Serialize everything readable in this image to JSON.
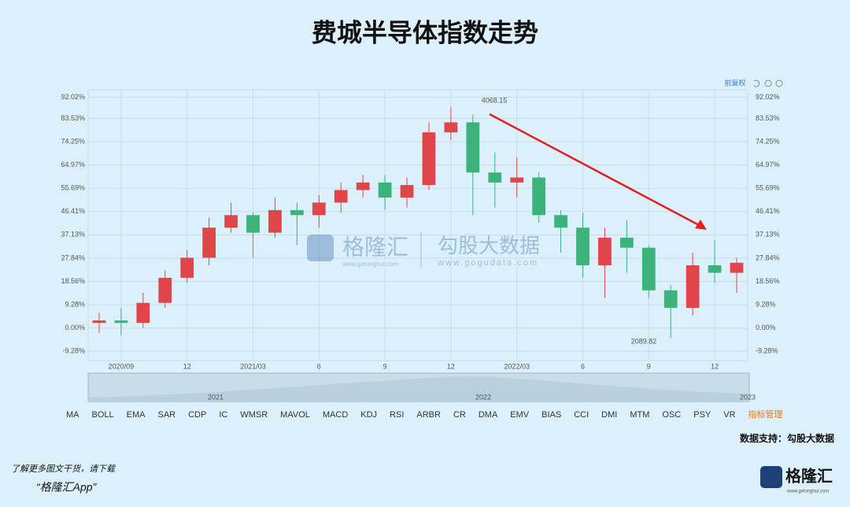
{
  "header": {
    "title": "费城半导体指数走势"
  },
  "chart_data": {
    "type": "candlestick",
    "categories": [
      null,
      "2020/09",
      null,
      null,
      "12",
      null,
      null,
      "2021/03",
      null,
      null,
      "6",
      null,
      null,
      "9",
      null,
      null,
      "12",
      null,
      null,
      "2022/03",
      null,
      null,
      "6",
      null,
      null,
      "9",
      null,
      null,
      "12",
      null
    ],
    "open": [
      2,
      3,
      2,
      10,
      20,
      28,
      40,
      45,
      38,
      47,
      45,
      50,
      55,
      58,
      52,
      57,
      78,
      82,
      62,
      58,
      60,
      45,
      40,
      25,
      36,
      32,
      15,
      8,
      25,
      22
    ],
    "close": [
      3,
      2,
      10,
      20,
      28,
      40,
      45,
      38,
      47,
      45,
      50,
      55,
      58,
      52,
      57,
      78,
      82,
      62,
      58,
      60,
      45,
      40,
      25,
      36,
      32,
      15,
      8,
      25,
      22,
      26
    ],
    "high": [
      6,
      8,
      14,
      23,
      31,
      44,
      50,
      46,
      52,
      50,
      53,
      58,
      61,
      61,
      60,
      82,
      88,
      85,
      70,
      68,
      62,
      47,
      46,
      40,
      43,
      33,
      17,
      30,
      35,
      28
    ],
    "low": [
      -2,
      -3,
      0,
      8,
      18,
      25,
      38,
      28,
      36,
      33,
      40,
      46,
      52,
      47,
      48,
      55,
      75,
      45,
      48,
      52,
      42,
      30,
      20,
      12,
      22,
      12,
      -4,
      5,
      18,
      14
    ],
    "up_color": "#e0454a",
    "down_color": "#3bb37a",
    "ylim": [
      -13,
      95
    ],
    "yticks": [
      {
        "value": -9.28,
        "label": "-9.28%"
      },
      {
        "value": 0,
        "label": "0.00%"
      },
      {
        "value": 9.28,
        "label": "9.28%"
      },
      {
        "value": 18.56,
        "label": "18.56%"
      },
      {
        "value": 27.84,
        "label": "27.84%"
      },
      {
        "value": 37.13,
        "label": "37.13%"
      },
      {
        "value": 46.41,
        "label": "46.41%"
      },
      {
        "value": 55.69,
        "label": "55.69%"
      },
      {
        "value": 64.97,
        "label": "64.97%"
      },
      {
        "value": 74.25,
        "label": "74.25%"
      },
      {
        "value": 83.53,
        "label": "83.53%"
      },
      {
        "value": 92.02,
        "label": "92.02%"
      }
    ],
    "grid": true,
    "annotations": [
      "4068.15",
      "2089.82"
    ],
    "view_mode": "前复权",
    "navigator_years": [
      "2021",
      "2022",
      "2023"
    ]
  },
  "toolbar": [
    "MA",
    "BOLL",
    "EMA",
    "SAR",
    "CDP",
    "IC",
    "WMSR",
    "MAVOL",
    "MACD",
    "KDJ",
    "RSI",
    "ARBR",
    "CR",
    "DMA",
    "EMV",
    "BIAS",
    "CCI",
    "DMI",
    "MTM",
    "OSC",
    "PSY",
    "VR",
    "指标管理"
  ],
  "watermark": {
    "brand": "格隆汇",
    "brand_url": "www.gelonghui.com",
    "data_brand": "勾股大数据",
    "data_url": "www.gogudata.com"
  },
  "footer": {
    "source": "数据支持：勾股大数据",
    "promo": "了解更多图文干货，请下载",
    "app": "“格隆汇App”",
    "logo": "格隆汇",
    "logo_url": "www.gelonghui.com"
  }
}
